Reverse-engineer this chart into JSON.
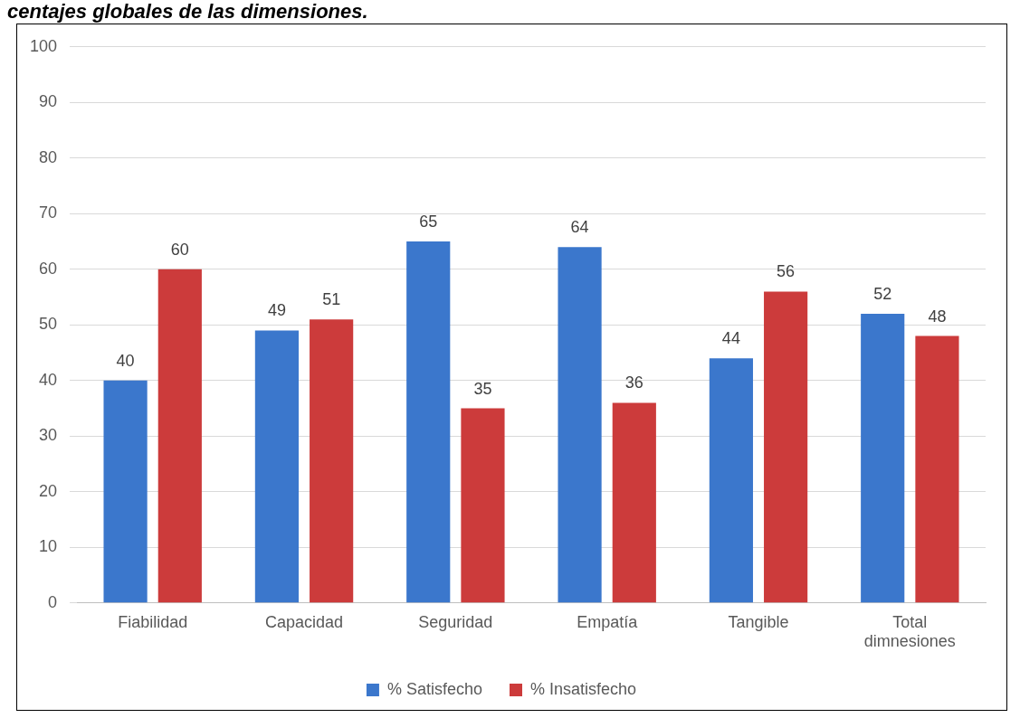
{
  "chart_data": {
    "type": "bar",
    "title": "centajes globales de las dimensiones.",
    "categories": [
      "Fiabilidad",
      "Capacidad",
      "Seguridad",
      "Empatía",
      "Tangible",
      "Total dimnesiones"
    ],
    "series": [
      {
        "name": "% Satisfecho",
        "color": "#3b77cc",
        "values": [
          40,
          49,
          65,
          64,
          44,
          52
        ]
      },
      {
        "name": "% Insatisfecho",
        "color": "#cc3b3b",
        "values": [
          60,
          51,
          35,
          36,
          56,
          48
        ]
      }
    ],
    "ylim": [
      0,
      100
    ],
    "yticks": [
      0,
      10,
      20,
      30,
      40,
      50,
      60,
      70,
      80,
      90,
      100
    ],
    "grid": "y",
    "legend": "bottom",
    "data_labels": true
  }
}
